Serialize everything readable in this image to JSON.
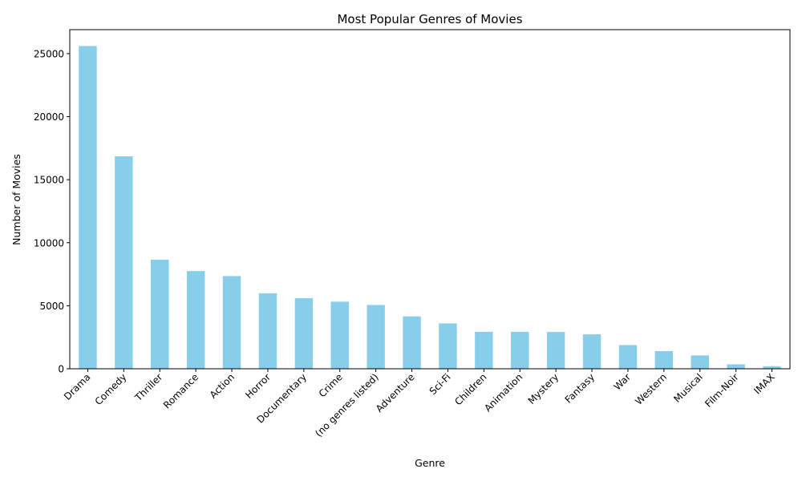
{
  "chart_data": {
    "type": "bar",
    "title": "Most Popular Genres of Movies",
    "xlabel": "Genre",
    "ylabel": "Number of Movies",
    "categories": [
      "Drama",
      "Comedy",
      "Thriller",
      "Romance",
      "Action",
      "Horror",
      "Documentary",
      "Crime",
      "(no genres listed)",
      "Adventure",
      "Sci-Fi",
      "Children",
      "Animation",
      "Mystery",
      "Fantasy",
      "War",
      "Western",
      "Musical",
      "Film-Noir",
      "IMAX"
    ],
    "values": [
      25600,
      16850,
      8650,
      7750,
      7350,
      5990,
      5600,
      5320,
      5060,
      4150,
      3600,
      2930,
      2930,
      2920,
      2730,
      1880,
      1400,
      1060,
      350,
      200
    ],
    "ylim": [
      0,
      26900
    ],
    "yticks": [
      0,
      5000,
      10000,
      15000,
      20000,
      25000
    ],
    "bar_color": "#87ceeb",
    "grid": false,
    "legend": "none"
  }
}
